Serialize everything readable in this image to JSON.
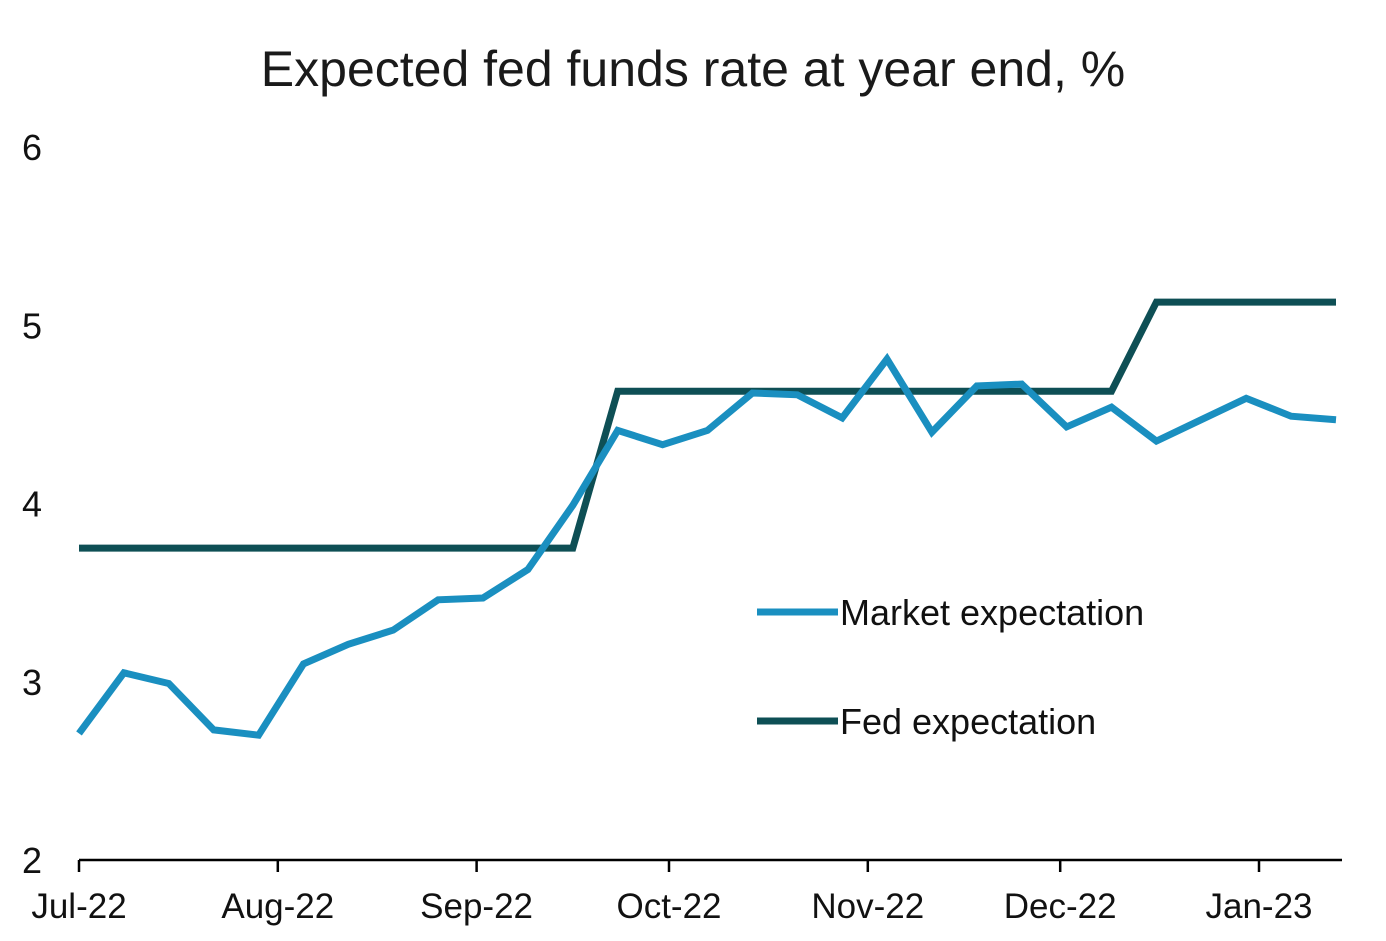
{
  "chart_data": {
    "type": "line",
    "title": "Expected fed funds rate at year end, %",
    "xlabel": "",
    "ylabel": "",
    "ylim": [
      2,
      6
    ],
    "yticks": [
      "2",
      "3",
      "4",
      "5",
      "6"
    ],
    "xlim": [
      "2022-07-01",
      "2023-01-15"
    ],
    "xticks": [
      {
        "label": "Jul-22",
        "date": "2022-07-01"
      },
      {
        "label": "Aug-22",
        "date": "2022-08-01"
      },
      {
        "label": "Sep-22",
        "date": "2022-09-01"
      },
      {
        "label": "Oct-22",
        "date": "2022-10-01"
      },
      {
        "label": "Nov-22",
        "date": "2022-11-01"
      },
      {
        "label": "Dec-22",
        "date": "2022-12-01"
      },
      {
        "label": "Jan-23",
        "date": "2023-01-01"
      }
    ],
    "grid": false,
    "legend": "center-right",
    "series": [
      {
        "name": "Market expectation",
        "color": "#1a8fc0",
        "points": [
          [
            "2022-07-01",
            2.71
          ],
          [
            "2022-07-08",
            3.05
          ],
          [
            "2022-07-15",
            2.99
          ],
          [
            "2022-07-22",
            2.73
          ],
          [
            "2022-07-29",
            2.7
          ],
          [
            "2022-08-05",
            3.1
          ],
          [
            "2022-08-12",
            3.21
          ],
          [
            "2022-08-19",
            3.29
          ],
          [
            "2022-08-26",
            3.46
          ],
          [
            "2022-09-02",
            3.47
          ],
          [
            "2022-09-09",
            3.63
          ],
          [
            "2022-09-16",
            3.99
          ],
          [
            "2022-09-23",
            4.41
          ],
          [
            "2022-09-30",
            4.33
          ],
          [
            "2022-10-07",
            4.41
          ],
          [
            "2022-10-14",
            4.62
          ],
          [
            "2022-10-21",
            4.61
          ],
          [
            "2022-10-28",
            4.48
          ],
          [
            "2022-11-04",
            4.81
          ],
          [
            "2022-11-11",
            4.4
          ],
          [
            "2022-11-18",
            4.66
          ],
          [
            "2022-11-25",
            4.67
          ],
          [
            "2022-12-02",
            4.43
          ],
          [
            "2022-12-09",
            4.54
          ],
          [
            "2022-12-16",
            4.35
          ],
          [
            "2022-12-23",
            4.47
          ],
          [
            "2022-12-30",
            4.59
          ],
          [
            "2023-01-06",
            4.49
          ],
          [
            "2023-01-13",
            4.47
          ]
        ]
      },
      {
        "name": "Fed expectation",
        "color": "#0e4f55",
        "points": [
          [
            "2022-07-01",
            3.75
          ],
          [
            "2022-09-16",
            3.75
          ],
          [
            "2022-09-23",
            4.63
          ],
          [
            "2022-12-09",
            4.63
          ],
          [
            "2022-12-16",
            5.13
          ],
          [
            "2023-01-13",
            5.13
          ]
        ]
      }
    ]
  }
}
